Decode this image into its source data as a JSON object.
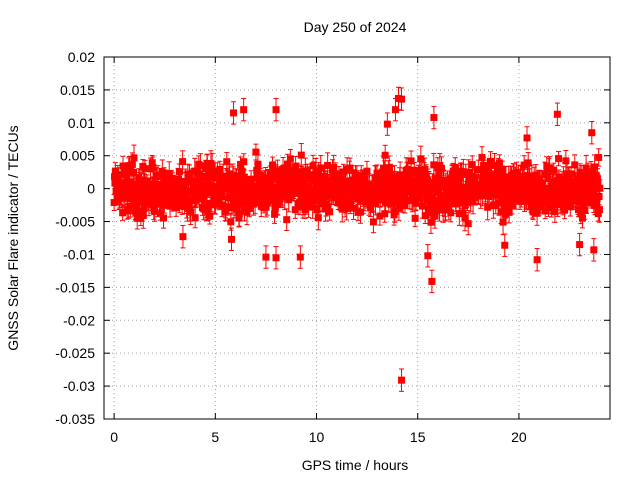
{
  "chart_data": {
    "type": "scatter",
    "title": "Day 250 of 2024",
    "xlabel": "GPS time / hours",
    "ylabel": "GNSS Solar Flare indicator / TECUs",
    "xlim": [
      -0.5,
      24.5
    ],
    "ylim": [
      -0.035,
      0.02
    ],
    "xticks": [
      0,
      5,
      10,
      15,
      20
    ],
    "yticks": [
      0.02,
      0.015,
      0.01,
      0.005,
      0,
      -0.005,
      -0.01,
      -0.015,
      -0.02,
      -0.025,
      -0.03,
      -0.035
    ],
    "ytick_labels": [
      "0.02",
      "0.015",
      "0.01",
      "0.005",
      "0",
      "-0.005",
      "-0.01",
      "-0.015",
      "-0.02",
      "-0.025",
      "-0.03",
      "-0.035"
    ],
    "xtick_labels": [
      "0",
      "5",
      "10",
      "15",
      "20"
    ],
    "grid": true,
    "series_color": "#ff0000",
    "bulk_x_range": [
      0,
      24
    ],
    "bulk_noise_sd": 0.0025,
    "bulk_errorbar": 0.0015,
    "outliers": [
      {
        "x": 5.9,
        "y": 0.0115
      },
      {
        "x": 6.4,
        "y": 0.012
      },
      {
        "x": 8.0,
        "y": 0.012
      },
      {
        "x": 13.5,
        "y": 0.0098
      },
      {
        "x": 13.9,
        "y": 0.012
      },
      {
        "x": 14.05,
        "y": 0.0137
      },
      {
        "x": 14.2,
        "y": 0.0136
      },
      {
        "x": 15.8,
        "y": 0.0108
      },
      {
        "x": 21.9,
        "y": 0.0113
      },
      {
        "x": 20.4,
        "y": 0.0077
      },
      {
        "x": 23.6,
        "y": 0.0085
      },
      {
        "x": 5.8,
        "y": -0.0077
      },
      {
        "x": 7.5,
        "y": -0.0104
      },
      {
        "x": 8.0,
        "y": -0.0105
      },
      {
        "x": 9.2,
        "y": -0.0104
      },
      {
        "x": 3.4,
        "y": -0.0073
      },
      {
        "x": 15.5,
        "y": -0.0102
      },
      {
        "x": 15.7,
        "y": -0.0141
      },
      {
        "x": 19.3,
        "y": -0.0086
      },
      {
        "x": 20.9,
        "y": -0.0108
      },
      {
        "x": 23.0,
        "y": -0.0085
      },
      {
        "x": 23.7,
        "y": -0.0093
      },
      {
        "x": 14.2,
        "y": -0.0291
      }
    ]
  }
}
